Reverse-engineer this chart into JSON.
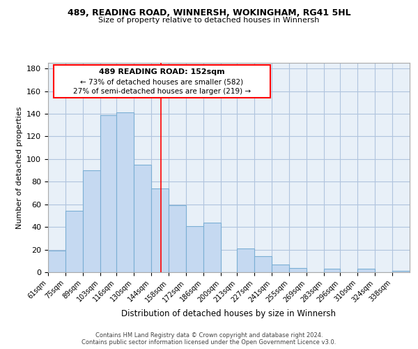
{
  "title": "489, READING ROAD, WINNERSH, WOKINGHAM, RG41 5HL",
  "subtitle": "Size of property relative to detached houses in Winnersh",
  "xlabel": "Distribution of detached houses by size in Winnersh",
  "ylabel": "Number of detached properties",
  "bar_labels": [
    "61sqm",
    "75sqm",
    "89sqm",
    "103sqm",
    "116sqm",
    "130sqm",
    "144sqm",
    "158sqm",
    "172sqm",
    "186sqm",
    "200sqm",
    "213sqm",
    "227sqm",
    "241sqm",
    "255sqm",
    "269sqm",
    "283sqm",
    "296sqm",
    "310sqm",
    "324sqm",
    "338sqm"
  ],
  "bar_values": [
    19,
    54,
    90,
    139,
    141,
    95,
    74,
    59,
    41,
    44,
    0,
    21,
    14,
    7,
    4,
    0,
    3,
    0,
    3,
    0,
    1
  ],
  "bar_color": "#c5d9f1",
  "bar_edgecolor": "#7bafd4",
  "ylim": [
    0,
    185
  ],
  "yticks": [
    0,
    20,
    40,
    60,
    80,
    100,
    120,
    140,
    160,
    180
  ],
  "annotation_title": "489 READING ROAD: 152sqm",
  "annotation_line1": "← 73% of detached houses are smaller (582)",
  "annotation_line2": "27% of semi-detached houses are larger (219) →",
  "footer1": "Contains HM Land Registry data © Crown copyright and database right 2024.",
  "footer2": "Contains public sector information licensed under the Open Government Licence v3.0.",
  "property_sqm": 152,
  "bin_edges": [
    61,
    75,
    89,
    103,
    116,
    130,
    144,
    158,
    172,
    186,
    200,
    213,
    227,
    241,
    255,
    269,
    283,
    296,
    310,
    324,
    338,
    352
  ],
  "grid_color": "#b0c4de",
  "bg_color": "#e8f0f8"
}
